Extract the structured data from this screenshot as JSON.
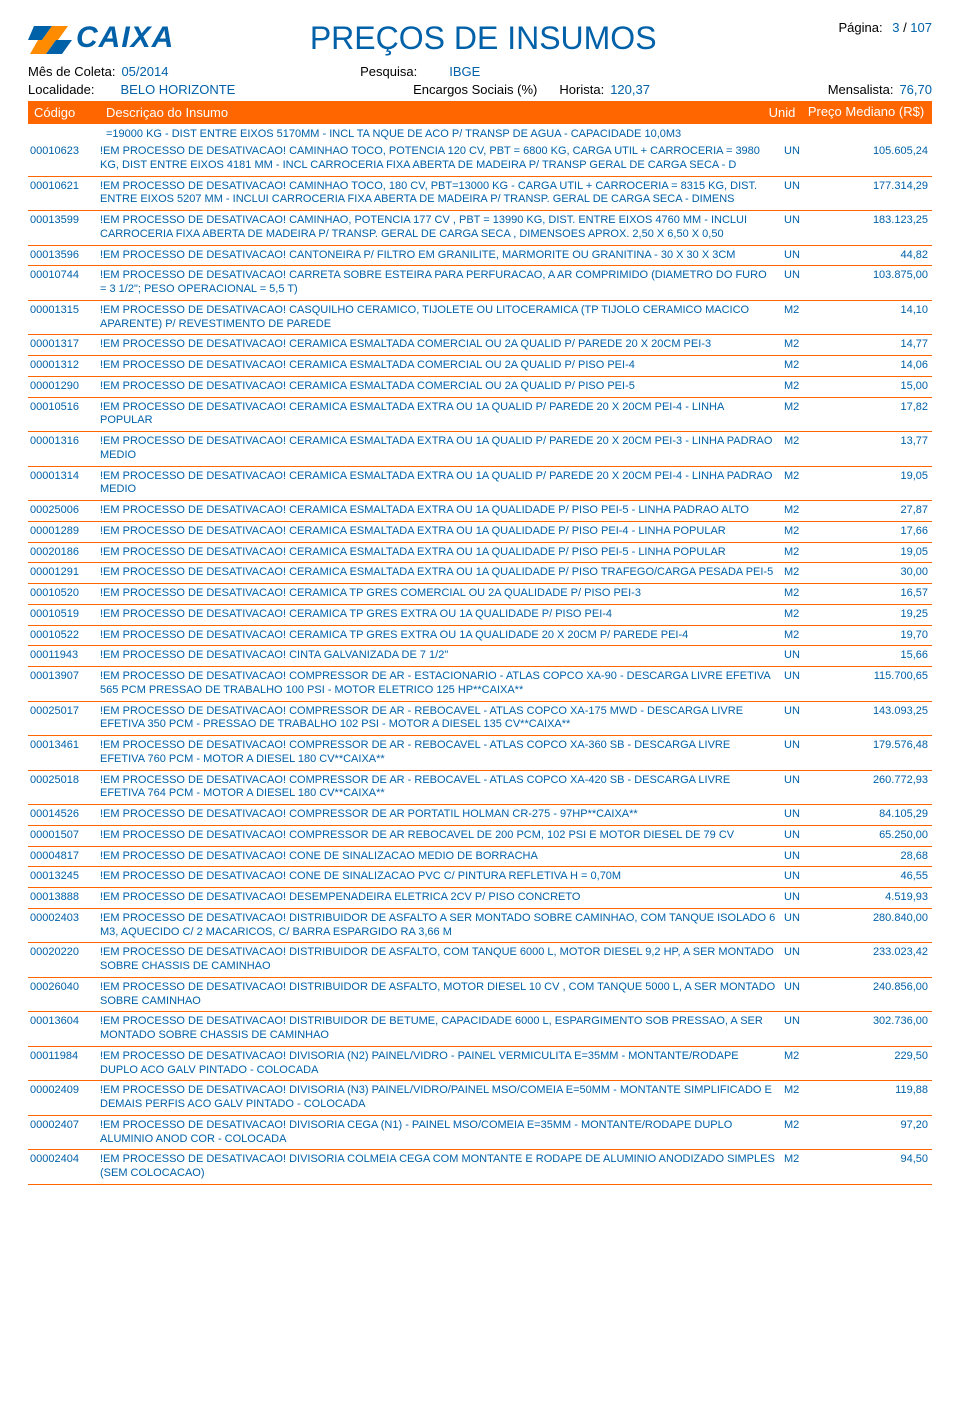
{
  "header": {
    "logo_text": "CAIXA",
    "title": "PREÇOS DE INSUMOS",
    "page_label": "Página:",
    "page_current": "3",
    "page_sep": " / ",
    "page_total": "107"
  },
  "meta": {
    "mes_label": "Mês de Coleta:",
    "mes_value": "05/2014",
    "pesquisa_label": "Pesquisa:",
    "pesquisa_value": "IBGE",
    "localidade_label": "Localidade:",
    "localidade_value": "BELO HORIZONTE",
    "encargos_label": "Encargos Sociais (%)",
    "horista_label": "Horista:",
    "horista_value": "120,37",
    "mensalista_label": "Mensalista:",
    "mensalista_value": "76,70"
  },
  "columns": {
    "codigo": "Código",
    "descricao": "Descriçao do Insumo",
    "unid": "Unid",
    "preco": "Preço Mediano (R$)"
  },
  "continuation": "=19000 KG - DIST ENTRE EIXOS 5170MM - INCL TA NQUE DE ACO P/ TRANSP   DE AGUA - CAPACIDADE 10,0M3",
  "rows": [
    {
      "codigo": "00010623",
      "desc": "!EM PROCESSO DE DESATIVACAO! CAMINHAO TOCO, POTENCIA 120 CV, PBT = 6800 KG, CARGA UTIL + CARROCERIA = 3980 KG, DIST ENTRE EIXOS 4181 MM - INCL CARROCERIA FIXA ABERTA DE MADEIRA P/ TRANSP GERAL DE CARGA SECA - D",
      "unid": "UN",
      "preco": "105.605,24"
    },
    {
      "codigo": "00010621",
      "desc": "!EM PROCESSO DE DESATIVACAO! CAMINHAO TOCO, 180 CV, PBT=13000 KG - CARGA UTIL + CARROCERIA = 8315 KG, DIST. ENTRE EIXOS 5207 MM - INCLUI CARROCERIA FIXA ABERTA DE MADEIRA P/ TRANSP. GERAL DE CARGA SECA - DIMENS",
      "unid": "UN",
      "preco": "177.314,29"
    },
    {
      "codigo": "00013599",
      "desc": "!EM PROCESSO DE DESATIVACAO! CAMINHAO, POTENCIA 177 CV , PBT = 13990 KG, DIST. ENTRE EIXOS 4760 MM - INCLUI CARROCERIA FIXA ABERTA DE MADEIRA P/ TRANSP. GERAL DE CARGA SECA , DIMENSOES APROX. 2,50 X 6,50 X 0,50",
      "unid": "UN",
      "preco": "183.123,25"
    },
    {
      "codigo": "00013596",
      "desc": "!EM PROCESSO DE DESATIVACAO! CANTONEIRA P/ FILTRO EM GRANILITE, MARMORITE OU GRANITINA - 30 X 30 X 3CM",
      "unid": "UN",
      "preco": "44,82"
    },
    {
      "codigo": "00010744",
      "desc": "!EM PROCESSO DE DESATIVACAO! CARRETA SOBRE ESTEIRA PARA PERFURACAO, A AR COMPRIMIDO (DIAMETRO DO FURO = 3 1/2\"; PESO OPERACIONAL = 5,5 T)",
      "unid": "UN",
      "preco": "103.875,00"
    },
    {
      "codigo": "00001315",
      "desc": "!EM PROCESSO DE DESATIVACAO! CASQUILHO CERAMICO, TIJOLETE OU LITOCERAMICA (TP TIJOLO CERAMICO MACICO APARENTE) P/ REVESTIMENTO DE PAREDE",
      "unid": "M2",
      "preco": "14,10"
    },
    {
      "codigo": "00001317",
      "desc": "!EM PROCESSO DE DESATIVACAO! CERAMICA ESMALTADA COMERCIAL OU 2A QUALID P/ PAREDE 20 X 20CM PEI-3",
      "unid": "M2",
      "preco": "14,77"
    },
    {
      "codigo": "00001312",
      "desc": "!EM PROCESSO DE DESATIVACAO! CERAMICA ESMALTADA COMERCIAL OU 2A QUALID P/ PISO PEI-4",
      "unid": "M2",
      "preco": "14,06"
    },
    {
      "codigo": "00001290",
      "desc": "!EM PROCESSO DE DESATIVACAO! CERAMICA ESMALTADA COMERCIAL OU 2A QUALID P/ PISO PEI-5",
      "unid": "M2",
      "preco": "15,00"
    },
    {
      "codigo": "00010516",
      "desc": "!EM PROCESSO DE DESATIVACAO! CERAMICA ESMALTADA EXTRA OU 1A QUALID P/ PAREDE 20 X 20CM  PEI-4 - LINHA POPULAR",
      "unid": "M2",
      "preco": "17,82"
    },
    {
      "codigo": "00001316",
      "desc": "!EM PROCESSO DE DESATIVACAO! CERAMICA ESMALTADA EXTRA OU 1A QUALID P/ PAREDE 20 X 20CM PEI-3 - LINHA PADRAO MEDIO",
      "unid": "M2",
      "preco": "13,77"
    },
    {
      "codigo": "00001314",
      "desc": "!EM PROCESSO DE DESATIVACAO! CERAMICA ESMALTADA EXTRA OU 1A QUALID P/ PAREDE 20 X 20CM PEI-4 - LINHA PADRAO MEDIO",
      "unid": "M2",
      "preco": "19,05"
    },
    {
      "codigo": "00025006",
      "desc": "!EM PROCESSO DE DESATIVACAO! CERAMICA ESMALTADA EXTRA OU 1A QUALIDADE   P/ PISO  PEI-5  -  LINHA PADRAO ALTO",
      "unid": "M2",
      "preco": "27,87"
    },
    {
      "codigo": "00001289",
      "desc": "!EM PROCESSO DE DESATIVACAO! CERAMICA ESMALTADA EXTRA OU 1A QUALIDADE P/ PISO PEI-4 - LINHA POPULAR",
      "unid": "M2",
      "preco": "17,66"
    },
    {
      "codigo": "00020186",
      "desc": "!EM PROCESSO DE DESATIVACAO! CERAMICA ESMALTADA EXTRA OU 1A QUALIDADE P/ PISO PEI-5 - LINHA POPULAR",
      "unid": "M2",
      "preco": "19,05"
    },
    {
      "codigo": "00001291",
      "desc": "!EM PROCESSO DE DESATIVACAO! CERAMICA ESMALTADA EXTRA OU 1A QUALIDADE P/ PISO TRAFEGO/CARGA PESADA  PEI-5",
      "unid": "M2",
      "preco": "30,00"
    },
    {
      "codigo": "00010520",
      "desc": "!EM PROCESSO DE DESATIVACAO! CERAMICA TP GRES COMERCIAL OU 2A QUALIDADE P/ PISO PEI-3",
      "unid": "M2",
      "preco": "16,57"
    },
    {
      "codigo": "00010519",
      "desc": "!EM PROCESSO DE DESATIVACAO! CERAMICA TP GRES EXTRA OU 1A QUALIDADE P/ PISO PEI-4",
      "unid": "M2",
      "preco": "19,25"
    },
    {
      "codigo": "00010522",
      "desc": "!EM PROCESSO DE DESATIVACAO! CERAMICA TP GRES EXTRA OU 1A QUALIDADE 20 X 20CM P/ PAREDE PEI-4",
      "unid": "M2",
      "preco": "19,70"
    },
    {
      "codigo": "00011943",
      "desc": "!EM PROCESSO DE DESATIVACAO! CINTA GALVANIZADA DE 7 1/2\"",
      "unid": "UN",
      "preco": "15,66"
    },
    {
      "codigo": "00013907",
      "desc": "!EM PROCESSO DE DESATIVACAO! COMPRESSOR DE AR - ESTACIONARIO - ATLAS COPCO XA-90 - DESCARGA LIVRE EFETIVA 565 PCM PRESSAO DE TRABALHO 100 PSI - MOTOR ELETRICO 125 HP**CAIXA**",
      "unid": "UN",
      "preco": "115.700,65"
    },
    {
      "codigo": "00025017",
      "desc": "!EM PROCESSO DE DESATIVACAO! COMPRESSOR DE AR - REBOCAVEL - ATLAS COPCO XA-175 MWD - DESCARGA LIVRE EFETIVA 350 PCM - PRESSAO DE TRABALHO 102 PSI - MOTOR A DIESEL 135 CV**CAIXA**",
      "unid": "UN",
      "preco": "143.093,25"
    },
    {
      "codigo": "00013461",
      "desc": "!EM PROCESSO DE DESATIVACAO! COMPRESSOR DE AR - REBOCAVEL - ATLAS COPCO XA-360 SB - DESCARGA LIVRE EFETIVA 760 PCM - MOTOR A DIESEL 180 CV**CAIXA**",
      "unid": "UN",
      "preco": "179.576,48"
    },
    {
      "codigo": "00025018",
      "desc": "!EM PROCESSO DE DESATIVACAO! COMPRESSOR DE AR - REBOCAVEL - ATLAS COPCO XA-420 SB - DESCARGA LIVRE EFETIVA 764 PCM - MOTOR A DIESEL 180 CV**CAIXA**",
      "unid": "UN",
      "preco": "260.772,93"
    },
    {
      "codigo": "00014526",
      "desc": "!EM PROCESSO DE DESATIVACAO! COMPRESSOR DE AR PORTATIL HOLMAN CR-275 - 97HP**CAIXA**",
      "unid": "UN",
      "preco": "84.105,29"
    },
    {
      "codigo": "00001507",
      "desc": "!EM PROCESSO DE DESATIVACAO! COMPRESSOR DE AR REBOCAVEL DE 200 PCM, 102 PSI E MOTOR DIESEL DE 79 CV",
      "unid": "UN",
      "preco": "65.250,00"
    },
    {
      "codigo": "00004817",
      "desc": "!EM PROCESSO DE DESATIVACAO! CONE DE SINALIZACAO MEDIO DE BORRACHA",
      "unid": "UN",
      "preco": "28,68"
    },
    {
      "codigo": "00013245",
      "desc": "!EM PROCESSO DE DESATIVACAO! CONE DE SINALIZACAO PVC C/ PINTURA REFLETIVA H = 0,70M",
      "unid": "UN",
      "preco": "46,55"
    },
    {
      "codigo": "00013888",
      "desc": "!EM PROCESSO DE DESATIVACAO! DESEMPENADEIRA ELETRICA 2CV P/ PISO CONCRETO",
      "unid": "UN",
      "preco": "4.519,93"
    },
    {
      "codigo": "00002403",
      "desc": "!EM PROCESSO DE DESATIVACAO! DISTRIBUIDOR DE ASFALTO A SER MONTADO SOBRE CAMINHAO, COM TANQUE ISOLADO 6 M3, AQUECIDO C/ 2 MACARICOS, C/ BARRA ESPARGIDO RA 3,66 M",
      "unid": "UN",
      "preco": "280.840,00"
    },
    {
      "codigo": "00020220",
      "desc": "!EM PROCESSO DE DESATIVACAO! DISTRIBUIDOR DE ASFALTO, COM TANQUE 6000 L, MOTOR DIESEL 9,2 HP,  A SER MONTADO SOBRE CHASSIS DE CAMINHAO",
      "unid": "UN",
      "preco": "233.023,42"
    },
    {
      "codigo": "00026040",
      "desc": "!EM PROCESSO DE DESATIVACAO! DISTRIBUIDOR DE ASFALTO, MOTOR DIESEL 10  CV ,  COM TANQUE 5000 L,  A SER MONTADO SOBRE CAMINHAO",
      "unid": "UN",
      "preco": "240.856,00"
    },
    {
      "codigo": "00013604",
      "desc": "!EM PROCESSO DE DESATIVACAO! DISTRIBUIDOR DE BETUME, CAPACIDADE 6000 L, ESPARGIMENTO SOB PRESSAO, A SER MONTADO SOBRE CHASSIS DE CAMINHAO",
      "unid": "UN",
      "preco": "302.736,00"
    },
    {
      "codigo": "00011984",
      "desc": "!EM PROCESSO DE DESATIVACAO! DIVISORIA (N2) PAINEL/VIDRO - PAINEL VERMICULITA E=35MM - MONTANTE/RODAPE DUPLO  ACO GALV PINTADO - COLOCADA",
      "unid": "M2",
      "preco": "229,50"
    },
    {
      "codigo": "00002409",
      "desc": "!EM PROCESSO DE DESATIVACAO! DIVISORIA (N3) PAINEL/VIDRO/PAINEL MSO/COMEIA E=50MM - MONTANTE SIMPLIFICADO E DEMAIS PERFIS ACO GALV PINTADO - COLOCADA",
      "unid": "M2",
      "preco": "119,88"
    },
    {
      "codigo": "00002407",
      "desc": "!EM PROCESSO DE DESATIVACAO! DIVISORIA CEGA (N1) - PAINEL MSO/COMEIA E=35MM - MONTANTE/RODAPE DUPLO ALUMINIO ANOD COR - COLOCADA",
      "unid": "M2",
      "preco": "97,20"
    },
    {
      "codigo": "00002404",
      "desc": "!EM PROCESSO DE DESATIVACAO! DIVISORIA COLMEIA CEGA COM MONTANTE E RODAPE DE ALUMINIO ANODIZADO SIMPLES (SEM COLOCACAO)",
      "unid": "M2",
      "preco": "94,50"
    }
  ]
}
